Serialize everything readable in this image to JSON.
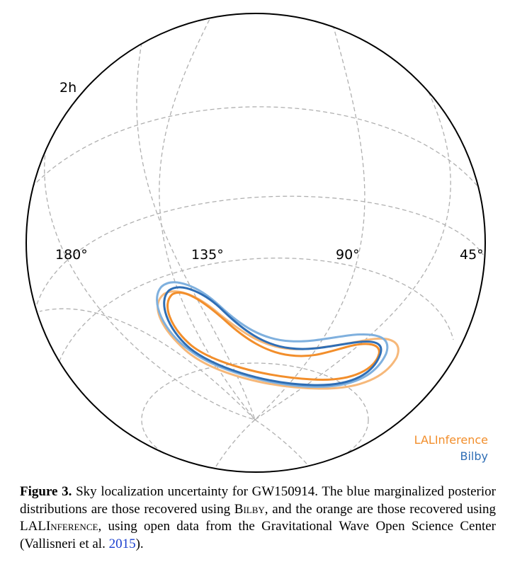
{
  "chart_data": {
    "type": "sky-map",
    "projection": "orthographic globe",
    "ra_labels": [
      "180°",
      "135°",
      "90°",
      "45°"
    ],
    "dec_label": "2h",
    "legend": [
      {
        "label": "LALInference",
        "color": "#f28e2b"
      },
      {
        "label": "Bilby",
        "color": "#2f6eb5"
      }
    ],
    "grid": true
  },
  "colors": {
    "orange": "#f28e2b",
    "orange_light": "#f6b87a",
    "blue": "#2f6eb5",
    "blue_light": "#7fb0de"
  },
  "caption": {
    "label": "Figure 3.",
    "part1": " Sky localization uncertainty for GW150914. The blue marginalized posterior distributions are those recovered using ",
    "bilby": "Bilby",
    "part2": ", and the orange are those recovered using LAL",
    "inference": "Inference",
    "part3": ", using open data from the Gravitational Wave Open Science Center (Vallisneri et al. ",
    "year": "2015",
    "part4": ")."
  }
}
